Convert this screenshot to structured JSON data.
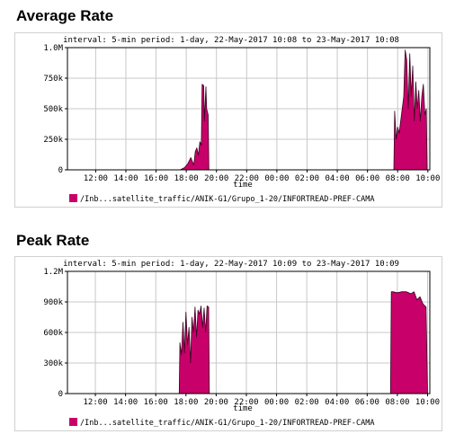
{
  "charts": [
    {
      "heading": "Average Rate",
      "interval_text": "interval: 5-min  period: 1-day, 22-May-2017 10:08 to 23-May-2017 10:08"
    },
    {
      "heading": "Peak Rate",
      "interval_text": "interval: 5-min  period: 1-day, 22-May-2017 10:09 to 23-May-2017 10:09"
    }
  ],
  "chart_data": [
    {
      "type": "area",
      "title": "",
      "xlabel": "time",
      "ylabel": "",
      "ylim": [
        0,
        1000000
      ],
      "xlim": [
        10.13,
        34.13
      ],
      "ytick_values": [
        0,
        250000,
        500000,
        750000,
        1000000
      ],
      "yticks": [
        "0",
        "250k",
        "500k",
        "750k",
        "1.0M"
      ],
      "xtick_values": [
        12,
        14,
        16,
        18,
        20,
        22,
        24,
        26,
        28,
        30,
        32,
        34
      ],
      "xticks": [
        "12:00",
        "14:00",
        "16:00",
        "18:00",
        "20:00",
        "22:00",
        "00:00",
        "02:00",
        "04:00",
        "06:00",
        "08:00",
        "10:00"
      ],
      "grid": true,
      "legend_position": "bottom",
      "color": "#c8006a",
      "series": [
        {
          "name": "/Inb...satellite_traffic/ANIK-G1/Grupo_1-20/INFORTREAD-PREF-CAMA",
          "x": [
            17.6,
            17.9,
            18.1,
            18.3,
            18.5,
            18.6,
            18.7,
            18.8,
            18.9,
            19.0,
            19.05,
            19.15,
            19.2,
            19.3,
            19.35,
            19.45,
            19.5,
            31.75,
            31.8,
            31.9,
            32.0,
            32.1,
            32.2,
            32.3,
            32.4,
            32.5,
            32.6,
            32.7,
            32.8,
            32.9,
            33.0,
            33.1,
            33.2,
            33.3,
            33.4,
            33.5,
            33.6,
            33.7,
            33.8,
            33.9,
            33.95
          ],
          "y": [
            0,
            20000,
            50000,
            100000,
            40000,
            150000,
            180000,
            120000,
            230000,
            200000,
            700000,
            690000,
            400000,
            680000,
            500000,
            450000,
            0,
            0,
            480000,
            250000,
            350000,
            300000,
            400000,
            500000,
            600000,
            980000,
            900000,
            500000,
            950000,
            600000,
            850000,
            400000,
            720000,
            500000,
            650000,
            400000,
            600000,
            700000,
            450000,
            500000,
            0
          ]
        }
      ]
    },
    {
      "type": "area",
      "title": "",
      "xlabel": "time",
      "ylabel": "",
      "ylim": [
        0,
        1200000
      ],
      "xlim": [
        10.15,
        34.15
      ],
      "ytick_values": [
        0,
        300000,
        600000,
        900000,
        1200000
      ],
      "yticks": [
        "0",
        "300k",
        "600k",
        "900k",
        "1.2M"
      ],
      "xtick_values": [
        12,
        14,
        16,
        18,
        20,
        22,
        24,
        26,
        28,
        30,
        32,
        34
      ],
      "xticks": [
        "12:00",
        "14:00",
        "16:00",
        "18:00",
        "20:00",
        "22:00",
        "00:00",
        "02:00",
        "04:00",
        "06:00",
        "08:00",
        "10:00"
      ],
      "grid": true,
      "legend_position": "bottom",
      "color": "#c8006a",
      "series": [
        {
          "name": "/Inb...satellite_traffic/ANIK-G1/Grupo_1-20/INFORTREAD-PREF-CAMA",
          "x": [
            17.55,
            17.6,
            17.7,
            17.8,
            17.9,
            18.0,
            18.1,
            18.2,
            18.3,
            18.4,
            18.5,
            18.6,
            18.7,
            18.8,
            18.9,
            19.0,
            19.1,
            19.2,
            19.3,
            19.4,
            19.5,
            19.55,
            31.55,
            31.6,
            31.7,
            32.0,
            32.3,
            32.6,
            32.9,
            33.1,
            33.3,
            33.5,
            33.7,
            33.9,
            34.0
          ],
          "y": [
            0,
            500000,
            380000,
            700000,
            400000,
            800000,
            480000,
            650000,
            300000,
            750000,
            600000,
            850000,
            550000,
            820000,
            780000,
            860000,
            650000,
            840000,
            600000,
            860000,
            850000,
            0,
            0,
            1000000,
            1000000,
            990000,
            1000000,
            1000000,
            980000,
            1000000,
            920000,
            950000,
            880000,
            850000,
            0
          ]
        }
      ]
    }
  ]
}
